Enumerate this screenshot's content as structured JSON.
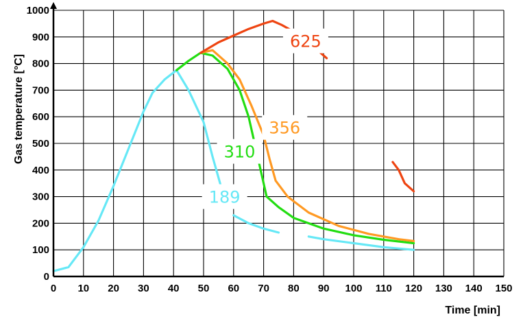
{
  "chart_data": {
    "type": "line",
    "xlabel": "Time [min]",
    "ylabel": "Gas temperature [°C]",
    "xlim": [
      0,
      150
    ],
    "ylim": [
      0,
      1000
    ],
    "x_ticks": [
      "0",
      "10",
      "20",
      "30",
      "40",
      "50",
      "60",
      "70",
      "80",
      "90",
      "100",
      "110",
      "120",
      "130",
      "140",
      "150"
    ],
    "y_ticks": [
      "0",
      "100",
      "200",
      "300",
      "400",
      "500",
      "600",
      "700",
      "800",
      "900",
      "1000"
    ],
    "grid": true,
    "series": [
      {
        "name": "189",
        "color": "#66e8f6",
        "segments": [
          [
            [
              0,
              20
            ],
            [
              5,
              35
            ],
            [
              10,
              110
            ],
            [
              15,
              210
            ],
            [
              20,
              340
            ],
            [
              25,
              480
            ],
            [
              30,
              620
            ],
            [
              33,
              690
            ],
            [
              37,
              740
            ],
            [
              41,
              775
            ],
            [
              45,
              700
            ],
            [
              50,
              580
            ],
            [
              53,
              450
            ],
            [
              56,
              330
            ],
            [
              58,
              280
            ]
          ],
          [
            [
              60,
              230
            ],
            [
              65,
              200
            ],
            [
              70,
              180
            ],
            [
              75,
              165
            ]
          ],
          [
            [
              85,
              150
            ],
            [
              90,
              140
            ],
            [
              100,
              125
            ],
            [
              110,
              110
            ],
            [
              120,
              100
            ]
          ]
        ]
      },
      {
        "name": "310",
        "color": "#22dd11",
        "segments": [
          [
            [
              41,
              775
            ],
            [
              45,
              810
            ],
            [
              49,
              840
            ],
            [
              53,
              830
            ],
            [
              58,
              780
            ],
            [
              62,
              700
            ],
            [
              65,
              600
            ],
            [
              67,
              500
            ],
            [
              69,
              400
            ],
            [
              70,
              350
            ],
            [
              71,
              300
            ],
            [
              75,
              260
            ],
            [
              80,
              220
            ],
            [
              90,
              180
            ],
            [
              100,
              155
            ],
            [
              110,
              138
            ],
            [
              120,
              125
            ]
          ]
        ]
      },
      {
        "name": "356",
        "color": "#ff9922",
        "segments": [
          [
            [
              49,
              840
            ],
            [
              53,
              850
            ],
            [
              58,
              800
            ],
            [
              62,
              740
            ],
            [
              66,
              640
            ],
            [
              70,
              530
            ],
            [
              72,
              440
            ],
            [
              74,
              360
            ],
            [
              78,
              300
            ],
            [
              85,
              240
            ],
            [
              95,
              190
            ],
            [
              105,
              160
            ],
            [
              115,
              140
            ],
            [
              120,
              133
            ]
          ]
        ]
      },
      {
        "name": "625",
        "color": "#ee4411",
        "segments": [
          [
            [
              49,
              840
            ],
            [
              55,
              880
            ],
            [
              60,
              905
            ],
            [
              65,
              930
            ],
            [
              70,
              950
            ],
            [
              73,
              960
            ],
            [
              76,
              945
            ],
            [
              80,
              920
            ],
            [
              85,
              880
            ],
            [
              90,
              830
            ],
            [
              91,
              820
            ]
          ],
          [
            [
              113,
              430
            ],
            [
              115,
              400
            ],
            [
              117,
              350
            ],
            [
              120,
              320
            ]
          ]
        ]
      }
    ]
  }
}
